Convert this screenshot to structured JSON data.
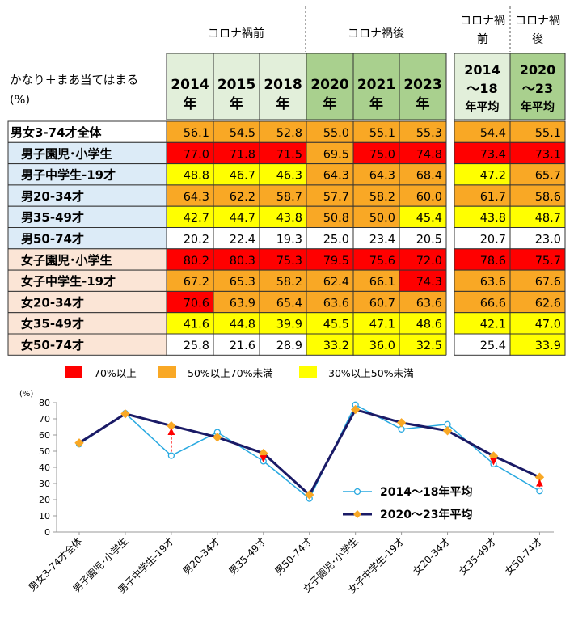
{
  "table": {
    "corner_label_line1": "かなり＋まあ当てはまる",
    "corner_label_line2": "(%)",
    "group_headers": [
      {
        "label": "コロナ禍前"
      },
      {
        "label": "コロナ禍後"
      },
      {
        "label": "コロナ禍前",
        "line1": "コロナ禍",
        "line2": "前"
      },
      {
        "label": "コロナ禍後",
        "line1": "コロナ禍",
        "line2": "後"
      }
    ],
    "columns": [
      {
        "line1": "2014",
        "line2": "年",
        "group": "pre"
      },
      {
        "line1": "2015",
        "line2": "年",
        "group": "pre"
      },
      {
        "line1": "2018",
        "line2": "年",
        "group": "pre"
      },
      {
        "line1": "2020",
        "line2": "年",
        "group": "post"
      },
      {
        "line1": "2021",
        "line2": "年",
        "group": "post"
      },
      {
        "line1": "2023",
        "line2": "年",
        "group": "post"
      },
      {
        "line1": "2014",
        "line2": "～18",
        "line3": "年平均",
        "group": "pre"
      },
      {
        "line1": "2020",
        "line2": "～23",
        "line3": "年平均",
        "group": "post"
      }
    ],
    "rows": [
      {
        "label": "男女3-74才全体",
        "category": "all",
        "values": [
          "56.1",
          "54.5",
          "52.8",
          "55.0",
          "55.1",
          "55.3",
          "54.4",
          "55.1"
        ]
      },
      {
        "label": "男子園児･小学生",
        "category": "male",
        "values": [
          "77.0",
          "71.8",
          "71.5",
          "69.5",
          "75.0",
          "74.8",
          "73.4",
          "73.1"
        ]
      },
      {
        "label": "男子中学生-19才",
        "category": "male",
        "values": [
          "48.8",
          "46.7",
          "46.3",
          "64.3",
          "64.3",
          "68.4",
          "47.2",
          "65.7"
        ]
      },
      {
        "label": "男20-34才",
        "category": "male",
        "values": [
          "64.3",
          "62.2",
          "58.7",
          "57.7",
          "58.2",
          "60.0",
          "61.7",
          "58.6"
        ]
      },
      {
        "label": "男35-49才",
        "category": "male",
        "values": [
          "42.7",
          "44.7",
          "43.8",
          "50.8",
          "50.0",
          "45.4",
          "43.8",
          "48.7"
        ]
      },
      {
        "label": "男50-74才",
        "category": "male",
        "values": [
          "20.2",
          "22.4",
          "19.3",
          "25.0",
          "23.4",
          "20.5",
          "20.7",
          "23.0"
        ]
      },
      {
        "label": "女子園児･小学生",
        "category": "female",
        "values": [
          "80.2",
          "80.3",
          "75.3",
          "79.5",
          "75.6",
          "72.0",
          "78.6",
          "75.7"
        ]
      },
      {
        "label": "女子中学生-19才",
        "category": "female",
        "values": [
          "67.2",
          "65.3",
          "58.2",
          "62.4",
          "66.1",
          "74.3",
          "63.6",
          "67.6"
        ]
      },
      {
        "label": "女20-34才",
        "category": "female",
        "values": [
          "70.6",
          "63.9",
          "65.4",
          "63.6",
          "60.7",
          "63.6",
          "66.6",
          "62.6"
        ]
      },
      {
        "label": "女35-49才",
        "category": "female",
        "values": [
          "41.6",
          "44.8",
          "39.9",
          "45.5",
          "47.1",
          "48.6",
          "42.1",
          "47.0"
        ]
      },
      {
        "label": "女50-74才",
        "category": "female",
        "values": [
          "25.8",
          "21.6",
          "28.9",
          "33.2",
          "36.0",
          "32.5",
          "25.4",
          "33.9"
        ]
      }
    ]
  },
  "legend": [
    {
      "label": "70%以上",
      "color": "#ff0000"
    },
    {
      "label": "50%以上70%未満",
      "color": "#f9a825"
    },
    {
      "label": "30%以上50%未満",
      "color": "#ffff00"
    }
  ],
  "chart_data": {
    "type": "line",
    "ylabel": "(%)",
    "ylim": [
      0,
      80
    ],
    "yticks": [
      0,
      10,
      20,
      30,
      40,
      50,
      60,
      70,
      80
    ],
    "grid": false,
    "legend_position": "bottom-right",
    "categories": [
      "男女3-74才全体",
      "男子園児･小学生",
      "男子中学生-19才",
      "男20-34才",
      "男35-49才",
      "男50-74才",
      "女子園児･小学生",
      "女子中学生-19才",
      "女20-34才",
      "女35-49才",
      "女50-74才"
    ],
    "series": [
      {
        "name": "2014～18年平均",
        "color": "#29a9e0",
        "marker": "circle",
        "values": [
          54.4,
          73.4,
          47.2,
          61.7,
          43.8,
          20.7,
          78.6,
          63.6,
          66.6,
          42.1,
          25.4
        ]
      },
      {
        "name": "2020～23年平均",
        "color": "#1a1a66",
        "marker": "diamond",
        "values": [
          55.1,
          73.1,
          65.7,
          58.6,
          48.7,
          23.0,
          75.7,
          67.6,
          62.6,
          47.0,
          33.9
        ]
      }
    ],
    "arrow_color": "#ff0000",
    "arrow_categories": [
      "男子中学生-19才",
      "男35-49才",
      "女35-49才",
      "女50-74才"
    ]
  }
}
